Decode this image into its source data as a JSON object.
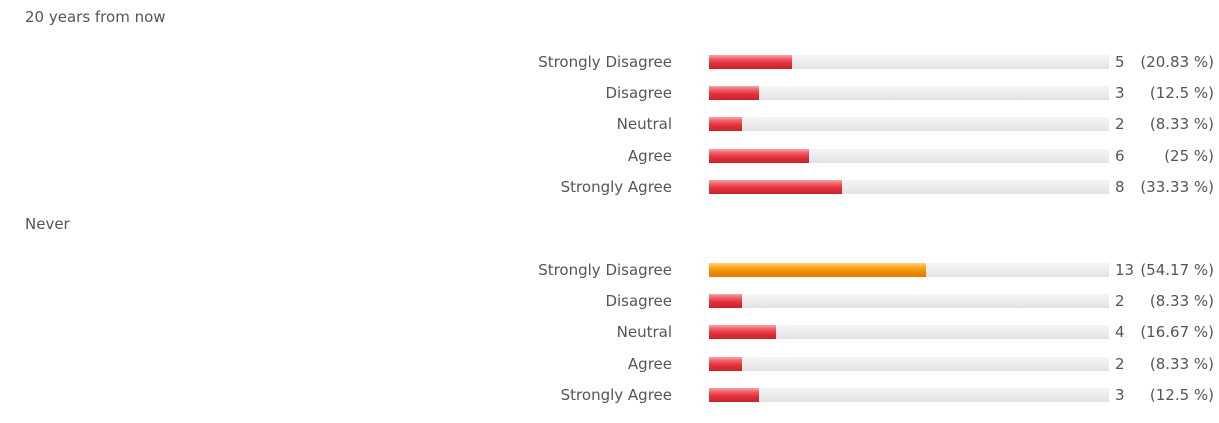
{
  "chart_data": [
    {
      "type": "bar",
      "orientation": "horizontal",
      "title": "20 years from now",
      "categories": [
        "Strongly Disagree",
        "Disagree",
        "Neutral",
        "Agree",
        "Strongly Agree"
      ],
      "values": [
        5,
        3,
        2,
        6,
        8
      ],
      "percent_labels": [
        "(20.83 %)",
        "(12.5 %)",
        "(8.33 %)",
        "(25 %)",
        "(33.33 %)"
      ],
      "xlim": [
        0,
        24
      ],
      "highlight_index": null
    },
    {
      "type": "bar",
      "orientation": "horizontal",
      "title": "Never",
      "categories": [
        "Strongly Disagree",
        "Disagree",
        "Neutral",
        "Agree",
        "Strongly Agree"
      ],
      "values": [
        13,
        2,
        4,
        2,
        3
      ],
      "percent_labels": [
        "(54.17 %)",
        "(8.33 %)",
        "(16.67 %)",
        "(8.33 %)",
        "(12.5 %)"
      ],
      "xlim": [
        0,
        24
      ],
      "highlight_index": 0
    }
  ],
  "colors": {
    "bar": "#e0303a",
    "highlight_bar": "#f8a31b",
    "track": "#ececec"
  }
}
